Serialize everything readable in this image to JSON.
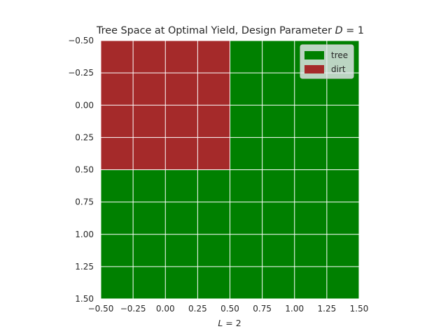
{
  "chart_data": {
    "type": "heatmap",
    "title": "Tree Space at Optimal Yield, Design Parameter D = 1",
    "title_parts": {
      "prefix": "Tree Space at Optimal Yield, Design Parameter ",
      "italic": "D",
      "suffix": " = 1"
    },
    "xlabel": "L = 2",
    "xlabel_parts": {
      "italic": "L",
      "suffix": " = 2"
    },
    "ylabel": "",
    "xlim": [
      -0.5,
      1.5
    ],
    "ylim": [
      1.5,
      -0.5
    ],
    "y_inverted": true,
    "x_ticks": [
      -0.5,
      -0.25,
      0.0,
      0.25,
      0.5,
      0.75,
      1.0,
      1.25,
      1.5
    ],
    "x_tick_labels": [
      "−0.50",
      "−0.25",
      "0.00",
      "0.25",
      "0.50",
      "0.75",
      "1.00",
      "1.25",
      "1.50"
    ],
    "y_ticks": [
      -0.5,
      -0.25,
      0.0,
      0.25,
      0.5,
      0.75,
      1.0,
      1.25,
      1.5
    ],
    "y_tick_labels": [
      "−0.50",
      "−0.25",
      "0.00",
      "0.25",
      "0.50",
      "0.75",
      "1.00",
      "1.25",
      "1.50"
    ],
    "grid": true,
    "legend_position": "top-right",
    "categories": [
      "tree",
      "dirt"
    ],
    "colors": {
      "tree": "#008000",
      "dirt": "#a52a2a"
    },
    "cells": [
      {
        "row": 0,
        "col": 0,
        "value": "dirt"
      },
      {
        "row": 0,
        "col": 1,
        "value": "tree"
      },
      {
        "row": 1,
        "col": 0,
        "value": "tree"
      },
      {
        "row": 1,
        "col": 1,
        "value": "tree"
      }
    ],
    "legend": [
      {
        "label": "tree",
        "color": "#008000"
      },
      {
        "label": "dirt",
        "color": "#a52a2a"
      }
    ]
  }
}
